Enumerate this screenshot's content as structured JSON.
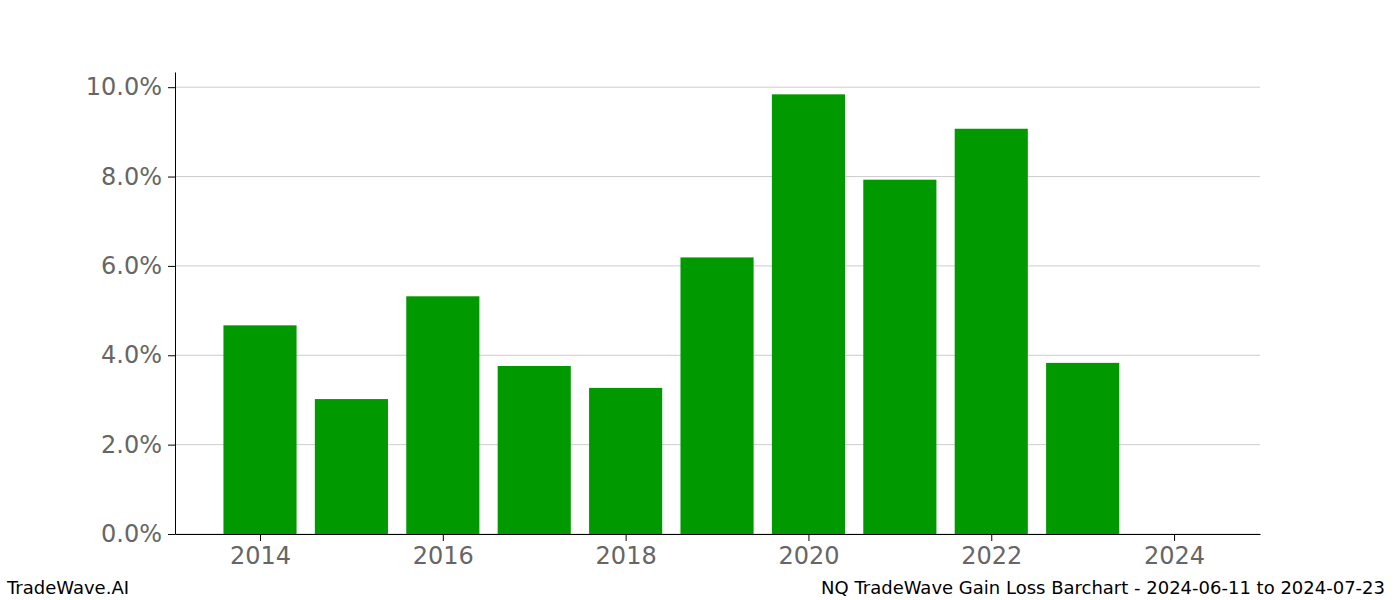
{
  "chart_data": {
    "type": "bar",
    "title": "NQ TradeWave Gain Loss Barchart - 2024-06-11 to 2024-07-23",
    "annotations": [
      "TradeWave.AI"
    ],
    "x": [
      2014,
      2015,
      2016,
      2017,
      2018,
      2019,
      2020,
      2021,
      2022,
      2023
    ],
    "values": [
      4.67,
      3.02,
      5.32,
      3.76,
      3.27,
      6.19,
      9.84,
      7.93,
      9.07,
      3.83
    ],
    "color": "#009900",
    "xlim": [
      2013.07,
      2024.94
    ],
    "xticks": [
      2014,
      2016,
      2018,
      2020,
      2022,
      2024
    ],
    "ylim": [
      0,
      10.34
    ],
    "yticks": [
      {
        "value": 0,
        "label": "0.0%"
      },
      {
        "value": 2,
        "label": "2.0%"
      },
      {
        "value": 4,
        "label": "4.0%"
      },
      {
        "value": 6,
        "label": "6.0%"
      },
      {
        "value": 8,
        "label": "8.0%"
      },
      {
        "value": 10,
        "label": "10.0%"
      }
    ],
    "grid": true
  }
}
